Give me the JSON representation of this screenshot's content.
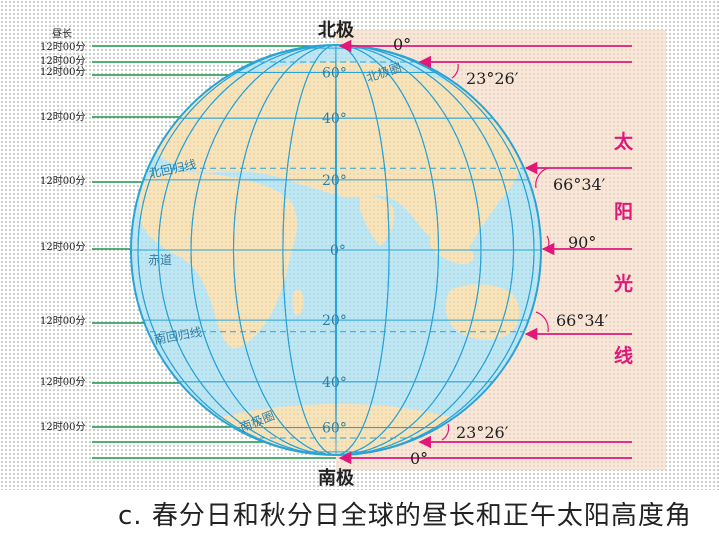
{
  "poles": {
    "north": "北极",
    "south": "南极"
  },
  "left_labels": {
    "header": "昼长",
    "values": [
      "12时00分",
      "12时00分",
      "12时00分",
      "12时00分",
      "12时00分",
      "12时00分",
      "12时00分",
      "12时00分",
      "12时00分"
    ]
  },
  "latitude_labels": [
    "60°",
    "40°",
    "20°",
    "0°",
    "20°",
    "40°",
    "60°"
  ],
  "circle_labels": {
    "arctic": "北极圈",
    "tropic_cancer": "北回归线",
    "equator": "赤道",
    "tropic_capricorn": "南回归线",
    "antarctic": "南极圈"
  },
  "sun_angles": [
    "0°",
    "23°26′",
    "66°34′",
    "90°",
    "66°34′",
    "23°26′",
    "0°"
  ],
  "sun_label": [
    "太",
    "阳",
    "光",
    "线"
  ],
  "caption": "c. 春分日和秋分日全球的昼长和正午太阳高度角",
  "colors": {
    "ocean": "#bfe6f3",
    "land": "#fbe3b8",
    "grid": "#2aa3d6",
    "day_line": "#1a9a4a",
    "sun_ray": "#e0187a",
    "sun_region": "#f9e6d6",
    "text": "#222222"
  }
}
